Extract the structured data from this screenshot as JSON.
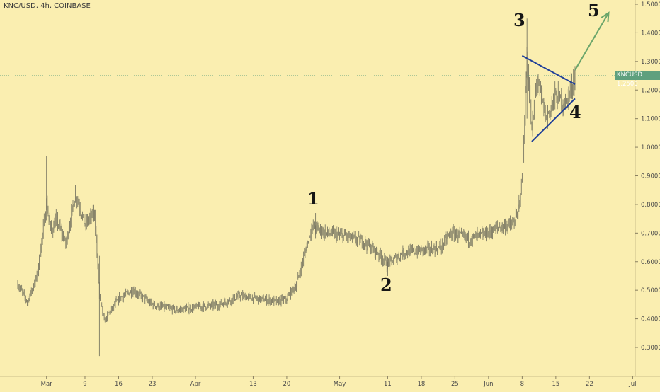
{
  "symbol_label": "KNC/USD, 4h, COINBASE",
  "price_badge": {
    "ticker": "KNCUSD",
    "price": "1.2500"
  },
  "colors": {
    "background": "#faeeb0",
    "candle": "#6b6a5a",
    "trendline": "#1f3f99",
    "arrow": "#6aa56a",
    "price_line": "#5fa07e"
  },
  "wave_labels": [
    "1",
    "2",
    "3",
    "4",
    "5"
  ],
  "chart_data": {
    "type": "line",
    "x_tick_labels": [
      "Mar",
      "9",
      "16",
      "23",
      "Apr",
      "13",
      "20",
      "May",
      "11",
      "18",
      "25",
      "Jun",
      "8",
      "15",
      "22",
      "Jul"
    ],
    "y_tick_labels": [
      "0.3000",
      "0.4000",
      "0.5000",
      "0.6000",
      "0.7000",
      "0.8000",
      "0.9000",
      "1.0000",
      "1.1000",
      "1.2000",
      "1.3000",
      "1.4000",
      "1.5000"
    ],
    "ylim": [
      0.22,
      1.52
    ],
    "current_price": 1.25,
    "series": [
      {
        "x": [
          "2020-02-24",
          "2020-02-26",
          "2020-02-28",
          "2020-03-01",
          "2020-03-02",
          "2020-03-03",
          "2020-03-05",
          "2020-03-07",
          "2020-03-09",
          "2020-03-11",
          "2020-03-12",
          "2020-03-13",
          "2020-03-14",
          "2020-03-16",
          "2020-03-19",
          "2020-03-23",
          "2020-03-28",
          "2020-04-01",
          "2020-04-06",
          "2020-04-10",
          "2020-04-14",
          "2020-04-18",
          "2020-04-20",
          "2020-04-22",
          "2020-04-25",
          "2020-04-26",
          "2020-04-28",
          "2020-05-02",
          "2020-05-06",
          "2020-05-09",
          "2020-05-11",
          "2020-05-14",
          "2020-05-18",
          "2020-05-22",
          "2020-05-24",
          "2020-05-28",
          "2020-06-01",
          "2020-06-03",
          "2020-06-06",
          "2020-06-07",
          "2020-06-08",
          "2020-06-09",
          "2020-06-10",
          "2020-06-11",
          "2020-06-13",
          "2020-06-15",
          "2020-06-17",
          "2020-06-19"
        ],
        "y": [
          0.52,
          0.46,
          0.55,
          0.8,
          0.7,
          0.75,
          0.66,
          0.84,
          0.73,
          0.77,
          0.48,
          0.39,
          0.42,
          0.47,
          0.5,
          0.45,
          0.43,
          0.44,
          0.45,
          0.48,
          0.47,
          0.46,
          0.47,
          0.52,
          0.71,
          0.72,
          0.7,
          0.69,
          0.67,
          0.63,
          0.59,
          0.63,
          0.64,
          0.65,
          0.7,
          0.68,
          0.7,
          0.72,
          0.73,
          0.76,
          0.89,
          1.32,
          1.05,
          1.24,
          1.1,
          1.18,
          1.15,
          1.25
        ]
      }
    ],
    "annotations": {
      "triangle_upper": {
        "x": [
          "2020-06-08",
          "2020-06-19"
        ],
        "y": [
          1.32,
          1.22
        ]
      },
      "triangle_lower": {
        "x": [
          "2020-06-10",
          "2020-06-19"
        ],
        "y": [
          1.02,
          1.17
        ]
      },
      "projection_arrow": {
        "x": [
          "2020-06-19",
          "2020-06-26"
        ],
        "y": [
          1.27,
          1.47
        ]
      }
    },
    "grid": false,
    "legend": "none"
  }
}
